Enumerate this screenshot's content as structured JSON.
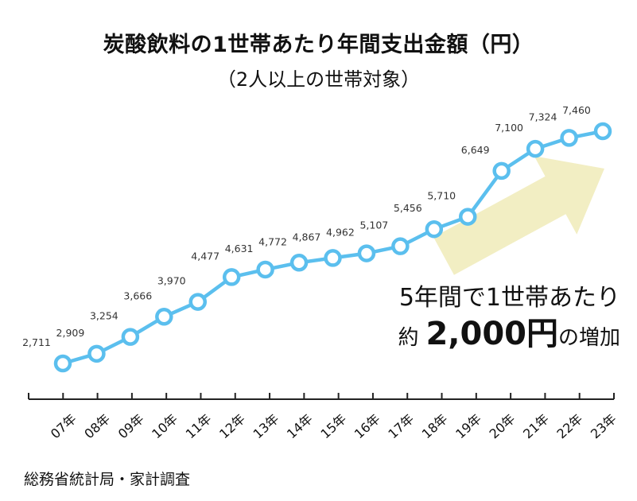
{
  "title": "炭酸飲料の1世帯あたり年間支出金額（円）",
  "subtitle": "（2人以上の世帯対象）",
  "callout": {
    "line1": "5年間で1世帯あたり",
    "prefix": "約",
    "amount": "2,000円",
    "suffix": "の増加"
  },
  "source": "総務省統計局・家計調査",
  "colors": {
    "line": "#5bbfee",
    "arrow": "#f2eec3",
    "axis": "#222222"
  },
  "chart_data": {
    "type": "line",
    "categories": [
      "07年",
      "08年",
      "09年",
      "10年",
      "11年",
      "12年",
      "13年",
      "14年",
      "15年",
      "16年",
      "17年",
      "18年",
      "19年",
      "20年",
      "21年",
      "22年",
      "23年"
    ],
    "values": [
      2711,
      2909,
      3254,
      3666,
      3970,
      4477,
      4631,
      4772,
      4867,
      4962,
      5107,
      5456,
      5710,
      6649,
      7100,
      7324,
      7460
    ],
    "data_labels": [
      "2,711",
      "2,909",
      "3,254",
      "3,666",
      "3,970",
      "4,477",
      "4,631",
      "4,772",
      "4,867",
      "4,962",
      "5,107",
      "5,456",
      "5,710",
      "6,649",
      "7,100",
      "7,324",
      "7,460"
    ],
    "title": "炭酸飲料の1世帯あたり年間支出金額（円）",
    "subtitle": "（2人以上の世帯対象）",
    "xlabel": "",
    "ylabel": "",
    "grid": false,
    "legend": "none"
  }
}
